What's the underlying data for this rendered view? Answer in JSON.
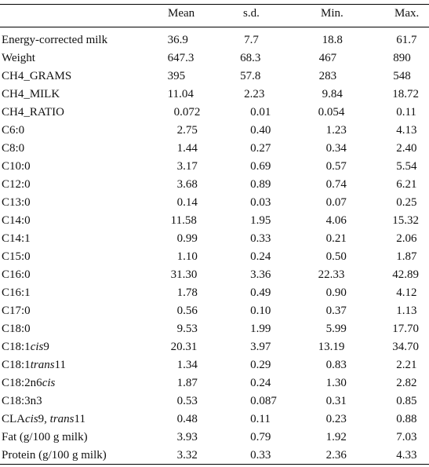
{
  "columns": [
    "Mean",
    "s.d.",
    "Min.",
    "Max."
  ],
  "rows": [
    {
      "label": [
        {
          "t": "Energy-corrected milk"
        }
      ],
      "values": [
        "36.9",
        "7.7",
        "18.8",
        "61.7"
      ]
    },
    {
      "label": [
        {
          "t": "Weight"
        }
      ],
      "values": [
        "647.3",
        "68.3",
        "467",
        "890"
      ]
    },
    {
      "label": [
        {
          "t": "CH4_GRAMS"
        }
      ],
      "values": [
        "395",
        "57.8",
        "283",
        "548"
      ]
    },
    {
      "label": [
        {
          "t": "CH4_MILK"
        }
      ],
      "values": [
        "11.04",
        "2.23",
        "9.84",
        "18.72"
      ]
    },
    {
      "label": [
        {
          "t": "CH4_RATIO"
        }
      ],
      "values": [
        "0.072",
        "0.01",
        "0.054",
        "0.11"
      ]
    },
    {
      "label": [
        {
          "t": "C6:0"
        }
      ],
      "values": [
        "2.75",
        "0.40",
        "1.23",
        "4.13"
      ]
    },
    {
      "label": [
        {
          "t": "C8:0"
        }
      ],
      "values": [
        "1.44",
        "0.27",
        "0.34",
        "2.40"
      ]
    },
    {
      "label": [
        {
          "t": "C10:0"
        }
      ],
      "values": [
        "3.17",
        "0.69",
        "0.57",
        "5.54"
      ]
    },
    {
      "label": [
        {
          "t": "C12:0"
        }
      ],
      "values": [
        "3.68",
        "0.89",
        "0.74",
        "6.21"
      ]
    },
    {
      "label": [
        {
          "t": "C13:0"
        }
      ],
      "values": [
        "0.14",
        "0.03",
        "0.07",
        "0.25"
      ]
    },
    {
      "label": [
        {
          "t": "C14:0"
        }
      ],
      "values": [
        "11.58",
        "1.95",
        "4.06",
        "15.32"
      ]
    },
    {
      "label": [
        {
          "t": "C14:1"
        }
      ],
      "values": [
        "0.99",
        "0.33",
        "0.21",
        "2.06"
      ]
    },
    {
      "label": [
        {
          "t": "C15:0"
        }
      ],
      "values": [
        "1.10",
        "0.24",
        "0.50",
        "1.87"
      ]
    },
    {
      "label": [
        {
          "t": "C16:0"
        }
      ],
      "values": [
        "31.30",
        "3.36",
        "22.33",
        "42.89"
      ]
    },
    {
      "label": [
        {
          "t": "C16:1"
        }
      ],
      "values": [
        "1.78",
        "0.49",
        "0.90",
        "4.12"
      ]
    },
    {
      "label": [
        {
          "t": "C17:0"
        }
      ],
      "values": [
        "0.56",
        "0.10",
        "0.37",
        "1.13"
      ]
    },
    {
      "label": [
        {
          "t": "C18:0"
        }
      ],
      "values": [
        "9.53",
        "1.99",
        "5.99",
        "17.70"
      ]
    },
    {
      "label": [
        {
          "t": "C18:1"
        },
        {
          "t": "cis",
          "i": true
        },
        {
          "t": "9"
        }
      ],
      "values": [
        "20.31",
        "3.97",
        "13.19",
        "34.70"
      ]
    },
    {
      "label": [
        {
          "t": "C18:1"
        },
        {
          "t": "trans",
          "i": true
        },
        {
          "t": "11"
        }
      ],
      "values": [
        "1.34",
        "0.29",
        "0.83",
        "2.21"
      ]
    },
    {
      "label": [
        {
          "t": "C18:2n6"
        },
        {
          "t": "cis",
          "i": true
        }
      ],
      "values": [
        "1.87",
        "0.24",
        "1.30",
        "2.82"
      ]
    },
    {
      "label": [
        {
          "t": "C18:3n3"
        }
      ],
      "values": [
        "0.53",
        "0.087",
        "0.31",
        "0.85"
      ]
    },
    {
      "label": [
        {
          "t": "CLA"
        },
        {
          "t": "cis",
          "i": true
        },
        {
          "t": "9, "
        },
        {
          "t": "trans",
          "i": true
        },
        {
          "t": "11"
        }
      ],
      "values": [
        "0.48",
        "0.11",
        "0.23",
        "0.88"
      ]
    },
    {
      "label": [
        {
          "t": "Fat (g/100 g milk)"
        }
      ],
      "values": [
        "3.93",
        "0.79",
        "1.92",
        "7.03"
      ]
    },
    {
      "label": [
        {
          "t": "Protein (g/100 g milk)"
        }
      ],
      "values": [
        "3.32",
        "0.33",
        "2.36",
        "4.33"
      ]
    }
  ]
}
